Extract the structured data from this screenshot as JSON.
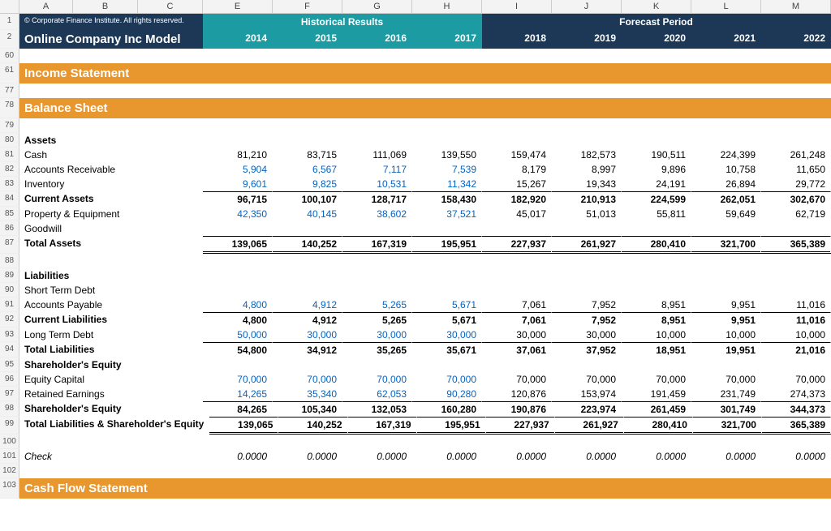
{
  "meta": {
    "copyright": "© Corporate Finance Institute. All rights reserved.",
    "title": "Online Company Inc Model",
    "historical_label": "Historical Results",
    "forecast_label": "Forecast Period"
  },
  "col_letters": [
    "A",
    "B",
    "C",
    "E",
    "F",
    "G",
    "H",
    "I",
    "J",
    "K",
    "L",
    "M"
  ],
  "row_numbers": [
    "1",
    "2",
    "60",
    "61",
    "77",
    "78",
    "79",
    "80",
    "81",
    "82",
    "83",
    "84",
    "85",
    "86",
    "87",
    "88",
    "89",
    "90",
    "91",
    "92",
    "93",
    "94",
    "95",
    "96",
    "97",
    "98",
    "99",
    "100",
    "101",
    "102",
    "103"
  ],
  "years": [
    "2014",
    "2015",
    "2016",
    "2017",
    "2018",
    "2019",
    "2020",
    "2021",
    "2022"
  ],
  "sections": {
    "income": "Income Statement",
    "balance": "Balance Sheet",
    "cashflow": "Cash Flow Statement"
  },
  "rows": {
    "assets_hdr": "Assets",
    "cash": {
      "label": "Cash",
      "vals": [
        "81,210",
        "83,715",
        "111,069",
        "139,550",
        "159,474",
        "182,573",
        "190,511",
        "224,399",
        "261,248"
      ]
    },
    "ar": {
      "label": "Accounts Receivable",
      "vals": [
        "5,904",
        "6,567",
        "7,117",
        "7,539",
        "8,179",
        "8,997",
        "9,896",
        "10,758",
        "11,650"
      ],
      "blue4": true
    },
    "inv": {
      "label": "Inventory",
      "vals": [
        "9,601",
        "9,825",
        "10,531",
        "11,342",
        "15,267",
        "19,343",
        "24,191",
        "26,894",
        "29,772"
      ],
      "blue4": true
    },
    "ca": {
      "label": "Current Assets",
      "vals": [
        "96,715",
        "100,107",
        "128,717",
        "158,430",
        "182,920",
        "210,913",
        "224,599",
        "262,051",
        "302,670"
      ],
      "bold": true,
      "bt": true
    },
    "ppe": {
      "label": "Property & Equipment",
      "vals": [
        "42,350",
        "40,145",
        "38,602",
        "37,521",
        "45,017",
        "51,013",
        "55,811",
        "59,649",
        "62,719"
      ],
      "blue4": true
    },
    "gw": {
      "label": "Goodwill",
      "vals": [
        "",
        "",
        "",
        "",
        "",
        "",
        "",
        "",
        ""
      ]
    },
    "ta": {
      "label": "Total Assets",
      "vals": [
        "139,065",
        "140,252",
        "167,319",
        "195,951",
        "227,937",
        "261,927",
        "280,410",
        "321,700",
        "365,389"
      ],
      "bold": true,
      "bt2": true,
      "bbd": true
    },
    "liab_hdr": "Liabilities",
    "std": {
      "label": "Short Term Debt",
      "vals": [
        "",
        "",
        "",
        "",
        "",
        "",
        "",
        "",
        ""
      ]
    },
    "ap": {
      "label": "Accounts Payable",
      "vals": [
        "4,800",
        "4,912",
        "5,265",
        "5,671",
        "7,061",
        "7,952",
        "8,951",
        "9,951",
        "11,016"
      ],
      "blue4": true
    },
    "cl": {
      "label": "Current Liabilities",
      "vals": [
        "4,800",
        "4,912",
        "5,265",
        "5,671",
        "7,061",
        "7,952",
        "8,951",
        "9,951",
        "11,016"
      ],
      "bold": true,
      "bt": true
    },
    "ltd": {
      "label": "Long Term Debt",
      "vals": [
        "50,000",
        "30,000",
        "30,000",
        "30,000",
        "30,000",
        "30,000",
        "10,000",
        "10,000",
        "10,000"
      ],
      "blue4": true
    },
    "tl": {
      "label": "Total Liabilities",
      "vals": [
        "54,800",
        "34,912",
        "35,265",
        "35,671",
        "37,061",
        "37,952",
        "18,951",
        "19,951",
        "21,016"
      ],
      "bold": true,
      "bt": true
    },
    "se_hdr": "Shareholder's Equity",
    "ec": {
      "label": "Equity Capital",
      "vals": [
        "70,000",
        "70,000",
        "70,000",
        "70,000",
        "70,000",
        "70,000",
        "70,000",
        "70,000",
        "70,000"
      ],
      "blue4": true
    },
    "re": {
      "label": "Retained Earnings",
      "vals": [
        "14,265",
        "35,340",
        "62,053",
        "90,280",
        "120,876",
        "153,974",
        "191,459",
        "231,749",
        "274,373"
      ],
      "blue4": true
    },
    "se": {
      "label": "Shareholder's Equity",
      "vals": [
        "84,265",
        "105,340",
        "132,053",
        "160,280",
        "190,876",
        "223,974",
        "261,459",
        "301,749",
        "344,373"
      ],
      "bold": true,
      "bt": true
    },
    "tlse": {
      "label": "Total Liabilities & Shareholder's Equity",
      "vals": [
        "139,065",
        "140,252",
        "167,319",
        "195,951",
        "227,937",
        "261,927",
        "280,410",
        "321,700",
        "365,389"
      ],
      "bold": true,
      "bt2": true,
      "bbd": true
    },
    "check": {
      "label": "Check",
      "vals": [
        "0.0000",
        "0.0000",
        "0.0000",
        "0.0000",
        "0.0000",
        "0.0000",
        "0.0000",
        "0.0000",
        "0.0000"
      ],
      "italic": true
    }
  },
  "style": {
    "dark_bg": "#1c3856",
    "teal_bg": "#1c9ba3",
    "orange_bg": "#e8962e",
    "blue_text": "#0563c1",
    "black_text": "#000000",
    "header_gray": "#f3f3f3",
    "grid_border": "#cccccc",
    "font_size_body": 12,
    "font_size_header": 15,
    "font_size_copyright": 9
  }
}
